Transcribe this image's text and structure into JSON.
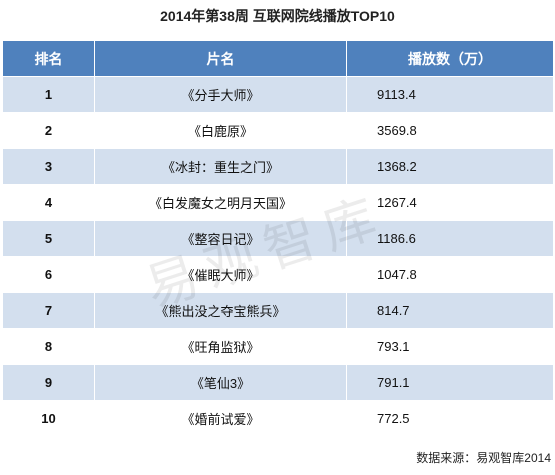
{
  "title": "2014年第38周 互联网院线播放TOP10",
  "chart_data": {
    "type": "table",
    "columns": [
      "排名",
      "片名",
      "播放数（万）"
    ],
    "rows": [
      {
        "rank": "1",
        "name": "《分手大师》",
        "value": "9113.4"
      },
      {
        "rank": "2",
        "name": "《白鹿原》",
        "value": "3569.8"
      },
      {
        "rank": "3",
        "name": "《冰封：重生之门》",
        "value": "1368.2"
      },
      {
        "rank": "4",
        "name": "《白发魔女之明月天国》",
        "value": "1267.4"
      },
      {
        "rank": "5",
        "name": "《整容日记》",
        "value": "1186.6"
      },
      {
        "rank": "6",
        "name": "《催眠大师》",
        "value": "1047.8"
      },
      {
        "rank": "7",
        "name": "《熊出没之夺宝熊兵》",
        "value": "814.7"
      },
      {
        "rank": "8",
        "name": "《旺角监狱》",
        "value": "793.1"
      },
      {
        "rank": "9",
        "name": "《笔仙3》",
        "value": "791.1"
      },
      {
        "rank": "10",
        "name": "《婚前试爱》",
        "value": "772.5"
      }
    ]
  },
  "source": "数据来源：易观智库2014",
  "watermark": "易观智库",
  "colors": {
    "header": "#4f81bd",
    "stripe": "#d3dfee"
  }
}
